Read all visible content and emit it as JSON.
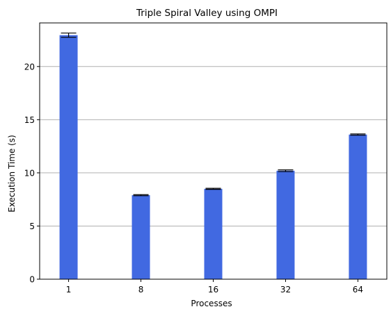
{
  "chart_data": {
    "type": "bar",
    "title": "Triple Spiral Valley using OMPI",
    "xlabel": "Processes",
    "ylabel": "Execution Time (s)",
    "categories": [
      "1",
      "8",
      "16",
      "32",
      "64"
    ],
    "values": [
      22.95,
      7.9,
      8.5,
      10.2,
      13.6
    ],
    "errors": [
      0.2,
      0.05,
      0.05,
      0.08,
      0.06
    ],
    "ylim": [
      0,
      24.1
    ],
    "yticks": [
      0,
      5,
      10,
      15,
      20
    ],
    "grid": "y",
    "bar_color": "#4169e1",
    "error_color": "#000000",
    "grid_color": "#b0b0b0"
  }
}
